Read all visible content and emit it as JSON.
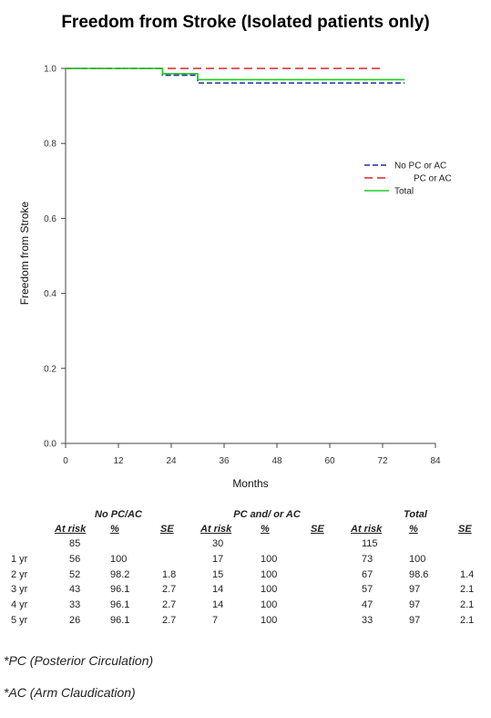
{
  "chart_data": {
    "type": "line",
    "title": "Freedom from Stroke (Isolated patients only)",
    "xlabel": "Months",
    "ylabel": "Freedom from Stroke",
    "xlim": [
      0,
      84
    ],
    "ylim": [
      0,
      1
    ],
    "xticks": [
      "0",
      "12",
      "24",
      "36",
      "48",
      "60",
      "72",
      "84"
    ],
    "yticks": [
      "0.0",
      "0.2",
      "0.4",
      "0.6",
      "0.8",
      "1.0"
    ],
    "grid": false,
    "legend_position": "right",
    "series": [
      {
        "name": "No PC or AC",
        "color": "#1f2fa8",
        "dash": "dashed",
        "x": [
          0,
          22,
          22,
          30,
          30,
          77
        ],
        "y": [
          1.0,
          1.0,
          0.982,
          0.982,
          0.961,
          0.961
        ]
      },
      {
        "name": "PC or AC",
        "color": "#d42a2a",
        "dash": "long-dashed",
        "x": [
          0,
          72
        ],
        "y": [
          1.0,
          1.0
        ]
      },
      {
        "name": "Total",
        "color": "#22cc22",
        "dash": "solid",
        "x": [
          0,
          22,
          22,
          30,
          30,
          77
        ],
        "y": [
          1.0,
          1.0,
          0.986,
          0.986,
          0.97,
          0.97
        ]
      }
    ]
  },
  "risk_table": {
    "groups": [
      "No PC/AC",
      "PC and/ or AC",
      "Total"
    ],
    "col_headers": [
      "At risk",
      "%",
      "SE"
    ],
    "rows": [
      {
        "label": "",
        "cells": [
          "85",
          "",
          "",
          "30",
          "",
          "",
          "115",
          "",
          ""
        ]
      },
      {
        "label": "1 yr",
        "cells": [
          "56",
          "100",
          "",
          "17",
          "100",
          "",
          "73",
          "100",
          ""
        ]
      },
      {
        "label": "2 yr",
        "cells": [
          "52",
          "98.2",
          "1.8",
          "15",
          "100",
          "",
          "67",
          "98.6",
          "1.4"
        ]
      },
      {
        "label": "3 yr",
        "cells": [
          "43",
          "96.1",
          "2.7",
          "14",
          "100",
          "",
          "57",
          "97",
          "2.1"
        ]
      },
      {
        "label": "4 yr",
        "cells": [
          "33",
          "96.1",
          "2.7",
          "14",
          "100",
          "",
          "47",
          "97",
          "2.1"
        ]
      },
      {
        "label": "5 yr",
        "cells": [
          "26",
          "96.1",
          "2.7",
          "7",
          "100",
          "",
          "33",
          "97",
          "2.1"
        ]
      }
    ]
  },
  "footnotes": {
    "pc": "*PC (Posterior Circulation)",
    "ac": "*AC (Arm Claudication)"
  }
}
